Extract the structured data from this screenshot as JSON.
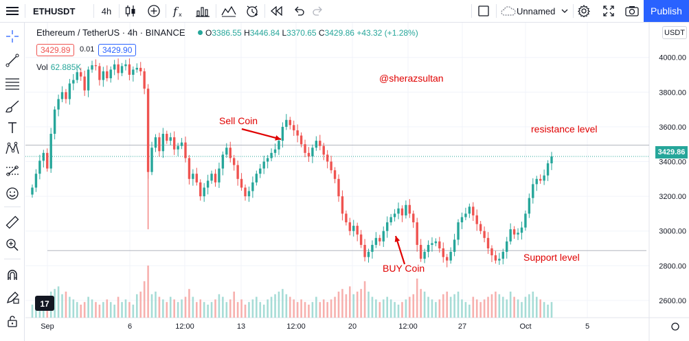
{
  "toolbar": {
    "symbol": "ETHUSDT",
    "interval": "4h",
    "layout_name": "Unnamed",
    "publish_label": "Publish"
  },
  "legend": {
    "title": "Ethereum / TetherUS · 4h · BINANCE",
    "open_label": "O",
    "open": "3386.55",
    "high_label": "H",
    "high": "3446.84",
    "low_label": "L",
    "low": "3370.65",
    "close_label": "C",
    "close": "3429.86",
    "change": "+43.32 (+1.28%)",
    "sell_price": "3429.89",
    "spread": "0.01",
    "buy_price": "3429.90",
    "volume_label": "Vol",
    "volume_value": "62.885K"
  },
  "annotations": {
    "watermark": "@sherazsultan",
    "sell": "Sell Coin",
    "buy": "BUY Coin",
    "resistance": "resistance level",
    "support": "Support level"
  },
  "price_scale": {
    "currency": "USDT",
    "current_price": "3429.86"
  },
  "colors": {
    "up": "#26a69a",
    "down": "#ef5350",
    "accent": "#2962ff",
    "annotation": "#e00000"
  },
  "chart_data": {
    "type": "candlestick",
    "ylim": [
      2560,
      4070
    ],
    "y_ticks": [
      2600,
      2800,
      3000,
      3200,
      3400,
      3600,
      3800,
      4000
    ],
    "y_tick_labels": [
      "2600.00",
      "2800.00",
      "3000.00",
      "3200.00",
      "3400.00",
      "3600.00",
      "3800.00",
      "4000.00"
    ],
    "x_tick_labels": [
      "Sep",
      "6",
      "12:00",
      "13",
      "12:00",
      "20",
      "12:00",
      "27",
      "Oct",
      "5"
    ],
    "resistance_level": 3495,
    "support_level": 2887,
    "current_price": 3429.86,
    "series": [
      {
        "name": "Price",
        "close": [
          3250,
          3330,
          3405,
          3450,
          3360,
          3560,
          3700,
          3760,
          3800,
          3760,
          3850,
          3870,
          3915,
          3890,
          3810,
          3930,
          3955,
          3950,
          3870,
          3920,
          3880,
          3930,
          3960,
          3910,
          3950,
          3960,
          3900,
          3930,
          3940,
          3920,
          3820,
          3340,
          3480,
          3540,
          3460,
          3560,
          3520,
          3540,
          3470,
          3490,
          3510,
          3420,
          3300,
          3330,
          3280,
          3200,
          3250,
          3290,
          3330,
          3280,
          3360,
          3440,
          3480,
          3420,
          3380,
          3300,
          3250,
          3200,
          3230,
          3280,
          3330,
          3360,
          3400,
          3420,
          3450,
          3470,
          3520,
          3600,
          3640,
          3610,
          3580,
          3550,
          3500,
          3450,
          3430,
          3480,
          3520,
          3490,
          3440,
          3400,
          3350,
          3300,
          3200,
          3100,
          3050,
          3000,
          3030,
          2980,
          2920,
          2850,
          2880,
          2920,
          2960,
          2940,
          3000,
          3050,
          3080,
          3100,
          3130,
          3090,
          3150,
          3100,
          3050,
          2920,
          2840,
          2880,
          2920,
          2930,
          2940,
          2900,
          2850,
          2830,
          2880,
          2950,
          3050,
          3080,
          3100,
          3140,
          3090,
          3040,
          3000,
          2960,
          2900,
          2860,
          2830,
          2840,
          2880,
          2940,
          3010,
          2980,
          2990,
          3020,
          3100,
          3190,
          3270,
          3300,
          3290,
          3320,
          3390,
          3430
        ]
      }
    ],
    "volume": {
      "name": "Vol",
      "values": [
        0.25,
        0.3,
        0.35,
        0.4,
        0.3,
        0.5,
        0.55,
        0.6,
        0.45,
        0.5,
        0.4,
        0.35,
        0.3,
        0.25,
        0.3,
        0.4,
        0.35,
        0.3,
        0.25,
        0.3,
        0.35,
        0.3,
        0.25,
        0.4,
        0.3,
        0.35,
        0.3,
        0.25,
        0.45,
        0.5,
        0.7,
        1.0,
        0.45,
        0.5,
        0.4,
        0.35,
        0.3,
        0.4,
        0.35,
        0.3,
        0.35,
        0.4,
        0.55,
        0.4,
        0.3,
        0.35,
        0.3,
        0.25,
        0.3,
        0.35,
        0.45,
        0.4,
        0.3,
        0.35,
        0.5,
        0.3,
        0.35,
        0.25,
        0.3,
        0.35,
        0.4,
        0.3,
        0.25,
        0.35,
        0.4,
        0.45,
        0.5,
        0.55,
        0.45,
        0.4,
        0.35,
        0.3,
        0.35,
        0.3,
        0.25,
        0.3,
        0.4,
        0.3,
        0.35,
        0.3,
        0.35,
        0.4,
        0.5,
        0.55,
        0.45,
        0.6,
        0.45,
        0.5,
        0.55,
        0.7,
        0.5,
        0.4,
        0.35,
        0.3,
        0.35,
        0.4,
        0.35,
        0.3,
        0.25,
        0.3,
        0.35,
        0.4,
        0.45,
        0.75,
        0.55,
        0.5,
        0.4,
        0.35,
        0.3,
        0.35,
        0.45,
        0.5,
        0.4,
        0.45,
        0.5,
        0.35,
        0.3,
        0.25,
        0.4,
        0.35,
        0.3,
        0.35,
        0.4,
        0.45,
        0.5,
        0.45,
        0.4,
        0.35,
        0.5,
        0.4,
        0.35,
        0.3,
        0.4,
        0.45,
        0.5,
        0.4,
        0.35,
        0.3,
        0.25,
        0.3
      ]
    }
  }
}
